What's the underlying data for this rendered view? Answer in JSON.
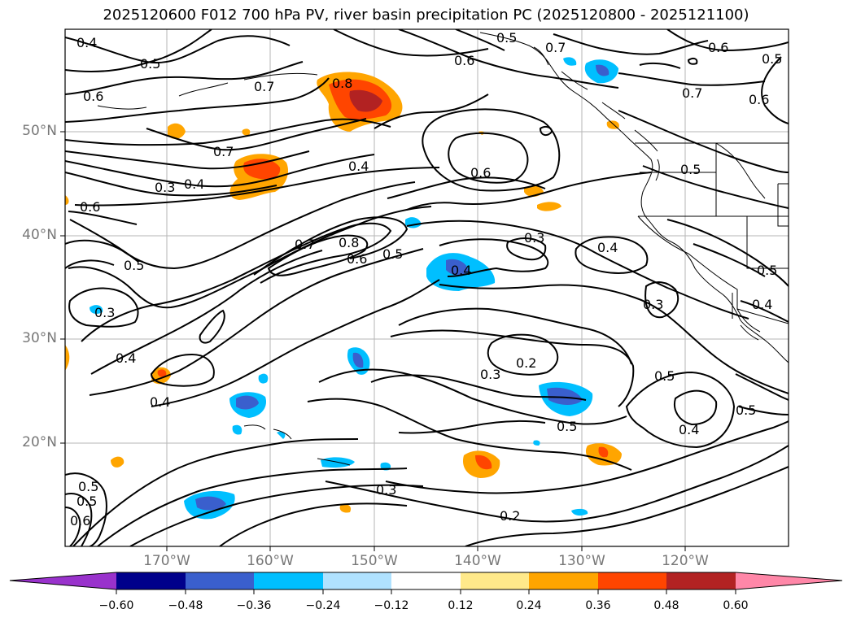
{
  "title": "2025120600 F012 700 hPa PV, river basin precipitation PC (2025120800 - 2025121100)",
  "map": {
    "lat_ticks": [
      "50°N",
      "40°N",
      "30°N",
      "20°N"
    ],
    "lon_ticks": [
      "170°W",
      "160°W",
      "150°W",
      "140°W",
      "130°W",
      "120°W"
    ],
    "contour_labels": [
      "0.4",
      "0.5",
      "0.6",
      "0.7",
      "0.8",
      "0.7",
      "0.4",
      "0.3",
      "0.6",
      "0.5",
      "0.3",
      "0.4",
      "0.4",
      "0.7",
      "0.8",
      "0.6",
      "0.5",
      "0.4",
      "0.3",
      "0.4",
      "0.3",
      "0.2",
      "0.3",
      "0.5",
      "0.5",
      "0.5",
      "0.4",
      "0.3",
      "0.2",
      "0.6",
      "0.6",
      "0.7",
      "0.5",
      "0.6",
      "0.5",
      "0.5",
      "0.4",
      "0.5",
      "0.6",
      "0.7",
      "0.6",
      "0.5",
      "0.5",
      "0.4"
    ]
  },
  "colorbar": {
    "ticks": [
      "−0.60",
      "−0.48",
      "−0.36",
      "−0.24",
      "−0.12",
      "0.12",
      "0.24",
      "0.36",
      "0.48",
      "0.60"
    ],
    "colors": [
      "#9932cc",
      "#00008b",
      "#3a5fcd",
      "#00bfff",
      "#b0e2ff",
      "#ffffff",
      "#ffe98a",
      "#ffa500",
      "#ff4500",
      "#b22222",
      "#ff87a8"
    ]
  }
}
